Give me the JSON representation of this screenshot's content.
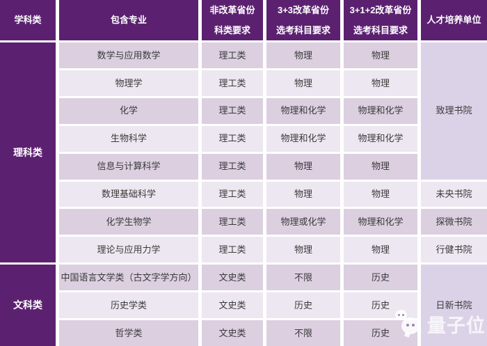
{
  "table": {
    "header": {
      "col1": "学科类",
      "col2": "包含专业",
      "col3_line1": "非改革省份",
      "col3_line2": "科类要求",
      "col4_line1": "3+3改革省份",
      "col4_line2": "选考科目要求",
      "col5_line1": "3+1+2改革省份",
      "col5_line2": "选考科目要求",
      "col6": "人才培养单位"
    },
    "sections": [
      {
        "category": "理科类",
        "rows": [
          {
            "major": "数学与应用数学",
            "subject_class": "理工类",
            "req_3plus3": "物理",
            "req_3plus1plus2": "物理"
          },
          {
            "major": "物理学",
            "subject_class": "理工类",
            "req_3plus3": "物理",
            "req_3plus1plus2": "物理"
          },
          {
            "major": "化学",
            "subject_class": "理工类",
            "req_3plus3": "物理和化学",
            "req_3plus1plus2": "物理和化学"
          },
          {
            "major": "生物科学",
            "subject_class": "理工类",
            "req_3plus3": "物理和化学",
            "req_3plus1plus2": "物理和化学"
          },
          {
            "major": "信息与计算科学",
            "subject_class": "理工类",
            "req_3plus3": "物理",
            "req_3plus1plus2": "物理"
          },
          {
            "major": "数理基础科学",
            "subject_class": "理工类",
            "req_3plus3": "物理",
            "req_3plus1plus2": "物理"
          },
          {
            "major": "化学生物学",
            "subject_class": "理工类",
            "req_3plus3": "物理或化学",
            "req_3plus1plus2": "物理和化学"
          },
          {
            "major": "理论与应用力学",
            "subject_class": "理工类",
            "req_3plus3": "物理",
            "req_3plus1plus2": "物理"
          }
        ],
        "units": [
          {
            "name": "致理书院",
            "rows_spanned": 5
          },
          {
            "name": "未央书院",
            "rows_spanned": 1
          },
          {
            "name": "探微书院",
            "rows_spanned": 1
          },
          {
            "name": "行健书院",
            "rows_spanned": 1
          }
        ]
      },
      {
        "category": "文科类",
        "rows": [
          {
            "major": "中国语言文学类（古文字学方向）",
            "subject_class": "文史类",
            "req_3plus3": "不限",
            "req_3plus1plus2": "历史"
          },
          {
            "major": "历史学类",
            "subject_class": "文史类",
            "req_3plus3": "历史",
            "req_3plus1plus2": "历史"
          },
          {
            "major": "哲学类",
            "subject_class": "文史类",
            "req_3plus3": "不限",
            "req_3plus1plus2": "历史"
          }
        ],
        "units": [
          {
            "name": "日新书院",
            "rows_spanned": 3
          }
        ]
      }
    ]
  },
  "watermark": {
    "text": "量子位"
  },
  "colors": {
    "header_purple": "#5b2170",
    "stripe_dark": "#dbcfe0",
    "stripe_light": "#ece7f0",
    "unit_lavender": "#dcd2e7",
    "gap_white": "#ffffff"
  }
}
